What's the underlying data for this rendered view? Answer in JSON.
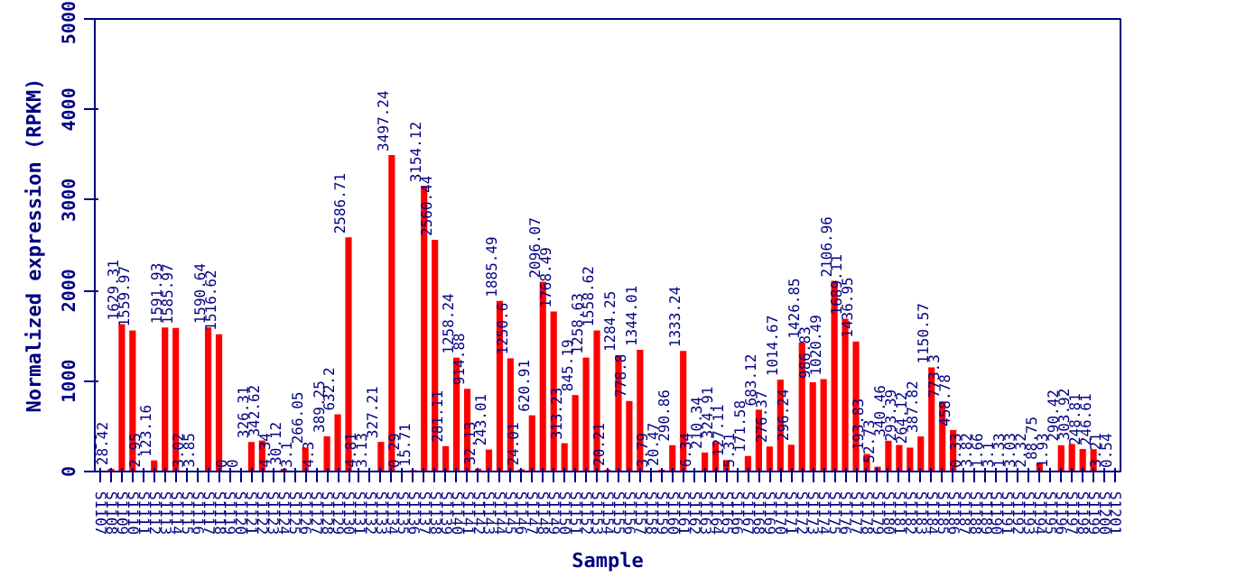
{
  "chart_data": {
    "type": "bar",
    "xlabel": "Sample",
    "ylabel": "Normalized expression (RPKM)",
    "categories": [
      "S1107",
      "S1108",
      "S1109",
      "S1110",
      "S1111",
      "S1112",
      "S1113",
      "S1114",
      "S1115",
      "S1116",
      "S1117",
      "S1118",
      "S1119",
      "S1120",
      "S1121",
      "S1122",
      "S1123",
      "S1124",
      "S1125",
      "S1126",
      "S1127",
      "S1128",
      "S1129",
      "S1130",
      "S1131",
      "S1132",
      "S1133",
      "S1134",
      "S1135",
      "S1136",
      "S1137",
      "S1138",
      "S1139",
      "S1140",
      "S1141",
      "S1142",
      "S1143",
      "S1144",
      "S1145",
      "S1146",
      "S1147",
      "S1148",
      "S1149",
      "S1150",
      "S1151",
      "S1152",
      "S1153",
      "S1154",
      "S1155",
      "S1156",
      "S1157",
      "S1158",
      "S1159",
      "S1160",
      "S1161",
      "S1162",
      "S1163",
      "S1164",
      "S1165",
      "S1166",
      "S1167",
      "S1168",
      "S1169",
      "S1170",
      "S1171",
      "S1172",
      "S1173",
      "S1174",
      "S1175",
      "S1176",
      "S1177",
      "S1178",
      "S1179",
      "S1180",
      "S1181",
      "S1182",
      "S1183",
      "S1184",
      "S1185",
      "S1186",
      "S1187",
      "S1188",
      "S1189",
      "S1190",
      "S1191",
      "S1192",
      "S1193",
      "S1194",
      "S1195",
      "S1196",
      "S1197",
      "S1198",
      "S1199",
      "S1200",
      "S1201"
    ],
    "values": [
      4.36,
      28.42,
      1629.31,
      1559.97,
      2.95,
      123.16,
      1591.93,
      1585.97,
      3.02,
      3.85,
      1590.64,
      1516.62,
      0,
      0,
      326.31,
      342.62,
      4.34,
      30.12,
      3.1,
      266.05,
      4.3,
      389.25,
      632.2,
      2586.71,
      4.81,
      3.13,
      327.21,
      3497.24,
      0.29,
      15.71,
      3154.12,
      2560.44,
      281.11,
      1258.24,
      914.88,
      32.13,
      243.01,
      1885.49,
      1250.6,
      24.01,
      620.91,
      2096.07,
      1768.49,
      313.23,
      845.19,
      1258.63,
      1558.62,
      20.21,
      1284.25,
      778.8,
      1344.01,
      3.79,
      20.47,
      290.86,
      1333.24,
      6.34,
      210.34,
      324.91,
      127.11,
      5.31,
      171.58,
      683.12,
      276.37,
      1014.67,
      296.24,
      1426.85,
      986.83,
      1020.49,
      2106.96,
      1689.11,
      1436.95,
      193.83,
      52.73,
      340.46,
      293.39,
      264.12,
      387.82,
      1150.57,
      773.3,
      458.78,
      0.33,
      3.82,
      1.66,
      3.1,
      1.33,
      3.03,
      2.32,
      88.75,
      1.93,
      290.42,
      303.92,
      248.81,
      246.61,
      3.21,
      0.54
    ],
    "color": "#ff0000",
    "data_labels": true,
    "ylim": [
      0,
      5000
    ],
    "yticks": [
      0,
      1000,
      2000,
      3000,
      4000,
      5000
    ],
    "grid": false
  }
}
